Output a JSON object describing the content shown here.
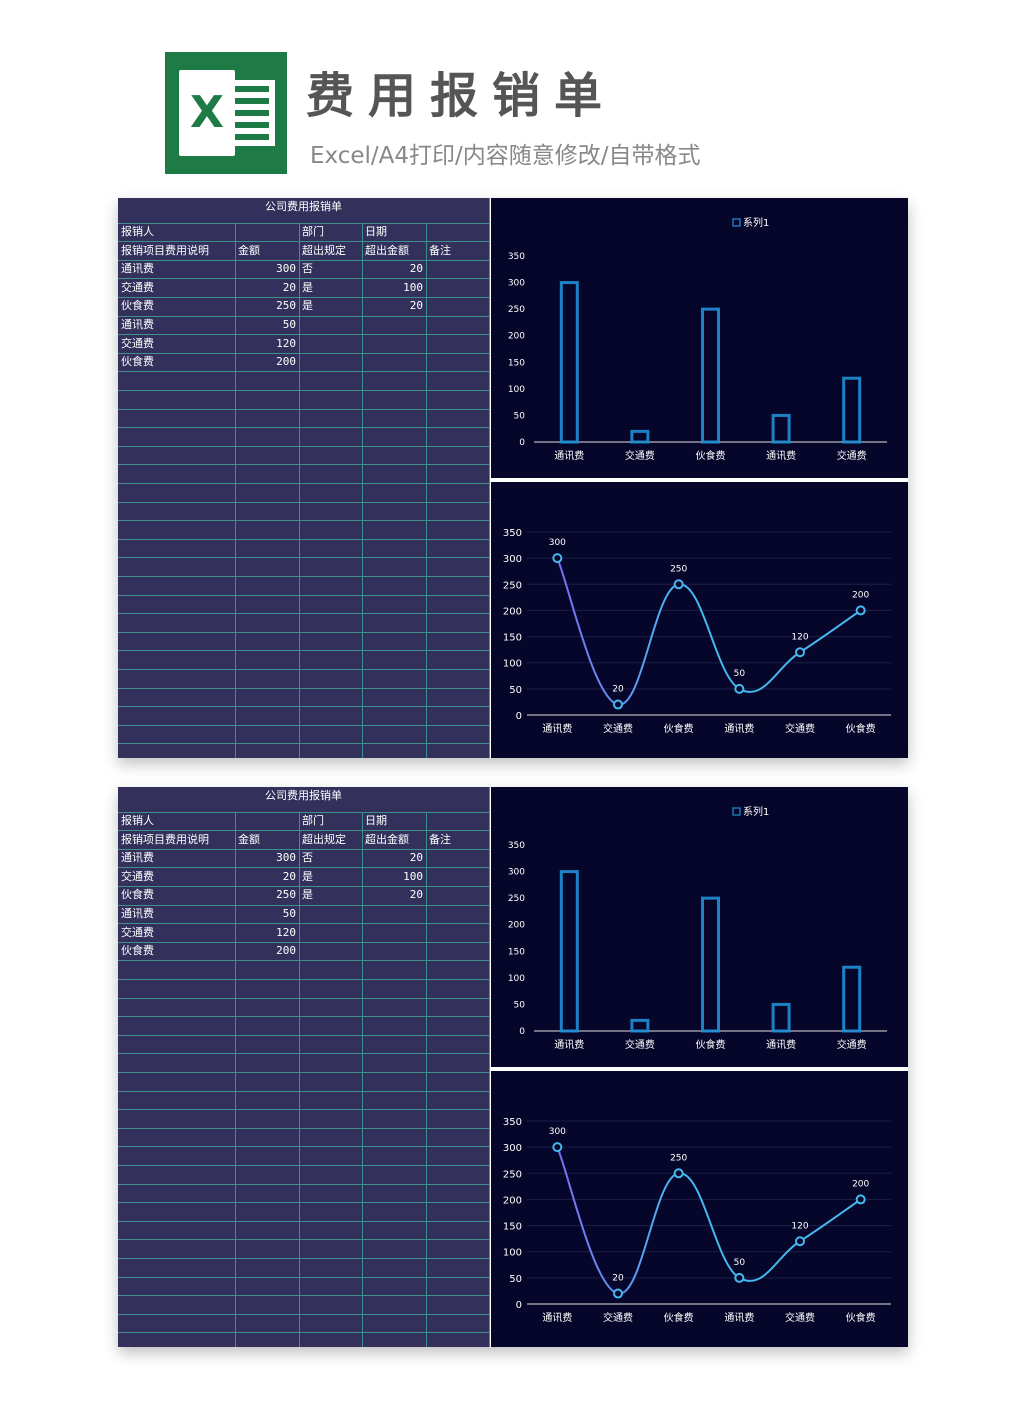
{
  "header": {
    "title": "费用报销单",
    "subtitle": "Excel/A4打印/内容随意修改/自带格式",
    "logo_letter": "X"
  },
  "sheet": {
    "title": "公司费用报销单",
    "row1": [
      "报销人",
      "",
      "部门",
      "日期",
      ""
    ],
    "headers": [
      "报销项目费用说明",
      "金额",
      "超出规定",
      "超出金额",
      "备注"
    ],
    "rows": [
      [
        "通讯费",
        "300",
        "否",
        "20",
        ""
      ],
      [
        "交通费",
        "20",
        "是",
        "100",
        ""
      ],
      [
        "伙食费",
        "250",
        "是",
        "20",
        ""
      ],
      [
        "通讯费",
        "50",
        "",
        "",
        ""
      ],
      [
        "交通费",
        "120",
        "",
        "",
        ""
      ],
      [
        "伙食费",
        "200",
        "",
        "",
        ""
      ]
    ]
  },
  "colors": {
    "page_bg": "#ffffff",
    "sheet_bg": "#33315c",
    "grid": "#3f8f8c",
    "chart_bg": "#06062a",
    "bar_stroke": "#1f8fd6",
    "line_stroke": "#46b8f0",
    "logo": "#1e7b45"
  },
  "chart_data": [
    {
      "type": "bar",
      "legend": "系列1",
      "categories": [
        "通讯费",
        "交通费",
        "伙食费",
        "通讯费",
        "交通费"
      ],
      "series": [
        {
          "name": "系列1",
          "values": [
            300,
            20,
            250,
            50,
            120
          ]
        }
      ],
      "yticks": [
        "0",
        "50",
        "100",
        "150",
        "200",
        "250",
        "300",
        "350"
      ],
      "ylim": [
        0,
        350
      ],
      "grid": false,
      "legend_position": "top"
    },
    {
      "type": "line",
      "categories": [
        "通讯费",
        "交通费",
        "伙食费",
        "通讯费",
        "交通费",
        "伙食费"
      ],
      "series": [
        {
          "values": [
            300,
            20,
            250,
            50,
            120,
            200
          ]
        }
      ],
      "data_labels": [
        "300",
        "20",
        "250",
        "50",
        "120",
        "200"
      ],
      "yticks": [
        "0",
        "50",
        "100",
        "150",
        "200",
        "250",
        "300",
        "350"
      ],
      "ylim": [
        0,
        350
      ],
      "grid": true,
      "smooth": true
    }
  ]
}
